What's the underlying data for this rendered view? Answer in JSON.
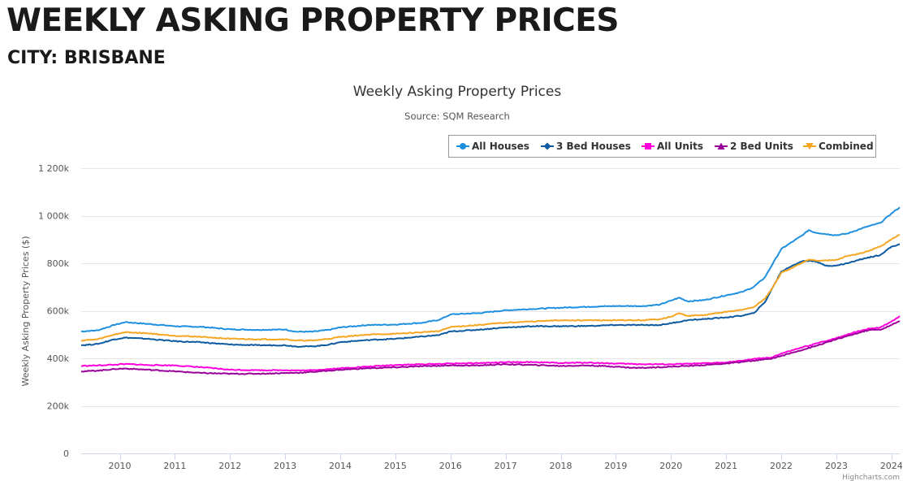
{
  "page": {
    "heading": "WEEKLY ASKING PROPERTY PRICES",
    "subheading": "CITY: BRISBANE"
  },
  "credits": "Highcharts.com",
  "chart_data": {
    "type": "line",
    "title": "Weekly Asking Property Prices",
    "subtitle": "Source: SQM Research",
    "xlabel": "",
    "ylabel": "Weekly Asking Property Prices ($)",
    "xlim": [
      2009.3,
      2024.15
    ],
    "ylim": [
      0,
      1200000
    ],
    "x_ticks": [
      2010,
      2011,
      2012,
      2013,
      2014,
      2015,
      2016,
      2017,
      2018,
      2019,
      2020,
      2021,
      2022,
      2023,
      2024
    ],
    "y_ticks": [
      0,
      200000,
      400000,
      600000,
      800000,
      1000000,
      1200000
    ],
    "y_tick_labels": [
      "0",
      "200k",
      "400k",
      "600k",
      "800k",
      "1 000k",
      "1 200k"
    ],
    "grid": true,
    "legend_position": "top-right",
    "series": [
      {
        "name": "All Houses",
        "color": "#1e90e0",
        "marker": "circle",
        "points": [
          [
            2009.3,
            513000
          ],
          [
            2009.6,
            518000
          ],
          [
            2009.9,
            540000
          ],
          [
            2010.1,
            552000
          ],
          [
            2010.5,
            545000
          ],
          [
            2011.0,
            535000
          ],
          [
            2011.5,
            532000
          ],
          [
            2012.0,
            522000
          ],
          [
            2012.5,
            520000
          ],
          [
            2013.0,
            521000
          ],
          [
            2013.2,
            512000
          ],
          [
            2013.5,
            512000
          ],
          [
            2013.8,
            520000
          ],
          [
            2014.0,
            530000
          ],
          [
            2014.5,
            540000
          ],
          [
            2015.0,
            542000
          ],
          [
            2015.5,
            550000
          ],
          [
            2015.8,
            562000
          ],
          [
            2016.0,
            585000
          ],
          [
            2016.5,
            590000
          ],
          [
            2017.0,
            602000
          ],
          [
            2017.5,
            608000
          ],
          [
            2018.0,
            613000
          ],
          [
            2018.5,
            617000
          ],
          [
            2019.0,
            620000
          ],
          [
            2019.5,
            620000
          ],
          [
            2019.8,
            626000
          ],
          [
            2020.0,
            643000
          ],
          [
            2020.15,
            655000
          ],
          [
            2020.3,
            640000
          ],
          [
            2020.6,
            645000
          ],
          [
            2021.0,
            665000
          ],
          [
            2021.3,
            680000
          ],
          [
            2021.5,
            700000
          ],
          [
            2021.7,
            740000
          ],
          [
            2021.85,
            800000
          ],
          [
            2022.0,
            860000
          ],
          [
            2022.2,
            890000
          ],
          [
            2022.4,
            920000
          ],
          [
            2022.5,
            940000
          ],
          [
            2022.6,
            930000
          ],
          [
            2022.9,
            920000
          ],
          [
            2023.0,
            918000
          ],
          [
            2023.2,
            925000
          ],
          [
            2023.5,
            950000
          ],
          [
            2023.8,
            970000
          ],
          [
            2024.0,
            1010000
          ],
          [
            2024.15,
            1035000
          ]
        ]
      },
      {
        "name": "3 Bed Houses",
        "color": "#0d5aa0",
        "marker": "diamond",
        "points": [
          [
            2009.3,
            455000
          ],
          [
            2009.6,
            460000
          ],
          [
            2009.9,
            480000
          ],
          [
            2010.1,
            487000
          ],
          [
            2010.5,
            482000
          ],
          [
            2011.0,
            472000
          ],
          [
            2011.5,
            467000
          ],
          [
            2012.0,
            458000
          ],
          [
            2012.5,
            455000
          ],
          [
            2013.0,
            455000
          ],
          [
            2013.2,
            450000
          ],
          [
            2013.5,
            450000
          ],
          [
            2013.8,
            458000
          ],
          [
            2014.0,
            468000
          ],
          [
            2014.5,
            477000
          ],
          [
            2015.0,
            482000
          ],
          [
            2015.5,
            492000
          ],
          [
            2015.8,
            498000
          ],
          [
            2016.0,
            513000
          ],
          [
            2016.5,
            520000
          ],
          [
            2017.0,
            530000
          ],
          [
            2017.5,
            535000
          ],
          [
            2018.0,
            535000
          ],
          [
            2018.5,
            536000
          ],
          [
            2019.0,
            540000
          ],
          [
            2019.5,
            540000
          ],
          [
            2019.8,
            540000
          ],
          [
            2020.0,
            548000
          ],
          [
            2020.3,
            560000
          ],
          [
            2020.6,
            565000
          ],
          [
            2021.0,
            572000
          ],
          [
            2021.3,
            580000
          ],
          [
            2021.5,
            590000
          ],
          [
            2021.7,
            635000
          ],
          [
            2021.85,
            700000
          ],
          [
            2022.0,
            765000
          ],
          [
            2022.2,
            790000
          ],
          [
            2022.4,
            810000
          ],
          [
            2022.6,
            810000
          ],
          [
            2022.8,
            790000
          ],
          [
            2023.0,
            790000
          ],
          [
            2023.2,
            800000
          ],
          [
            2023.5,
            820000
          ],
          [
            2023.8,
            835000
          ],
          [
            2024.0,
            870000
          ],
          [
            2024.15,
            880000
          ]
        ]
      },
      {
        "name": "All Units",
        "color": "#ff00dd",
        "marker": "square",
        "points": [
          [
            2009.3,
            368000
          ],
          [
            2009.6,
            370000
          ],
          [
            2009.9,
            373000
          ],
          [
            2010.1,
            376000
          ],
          [
            2010.5,
            372000
          ],
          [
            2011.0,
            370000
          ],
          [
            2011.5,
            362000
          ],
          [
            2012.0,
            352000
          ],
          [
            2012.5,
            350000
          ],
          [
            2013.0,
            350000
          ],
          [
            2013.3,
            349000
          ],
          [
            2013.5,
            350000
          ],
          [
            2014.0,
            358000
          ],
          [
            2014.5,
            365000
          ],
          [
            2015.0,
            372000
          ],
          [
            2015.5,
            375000
          ],
          [
            2016.0,
            378000
          ],
          [
            2016.5,
            380000
          ],
          [
            2017.0,
            383000
          ],
          [
            2017.5,
            384000
          ],
          [
            2018.0,
            380000
          ],
          [
            2018.5,
            382000
          ],
          [
            2019.0,
            378000
          ],
          [
            2019.5,
            375000
          ],
          [
            2020.0,
            375000
          ],
          [
            2020.5,
            378000
          ],
          [
            2021.0,
            383000
          ],
          [
            2021.3,
            390000
          ],
          [
            2021.5,
            398000
          ],
          [
            2021.8,
            402000
          ],
          [
            2022.0,
            420000
          ],
          [
            2022.3,
            440000
          ],
          [
            2022.6,
            460000
          ],
          [
            2023.0,
            485000
          ],
          [
            2023.3,
            508000
          ],
          [
            2023.6,
            525000
          ],
          [
            2023.8,
            530000
          ],
          [
            2024.0,
            555000
          ],
          [
            2024.15,
            578000
          ]
        ]
      },
      {
        "name": "2 Bed Units",
        "color": "#990099",
        "marker": "triangle",
        "points": [
          [
            2009.3,
            345000
          ],
          [
            2009.6,
            348000
          ],
          [
            2009.9,
            355000
          ],
          [
            2010.1,
            357000
          ],
          [
            2010.5,
            352000
          ],
          [
            2011.0,
            345000
          ],
          [
            2011.5,
            338000
          ],
          [
            2012.0,
            335000
          ],
          [
            2012.5,
            335000
          ],
          [
            2013.0,
            338000
          ],
          [
            2013.3,
            340000
          ],
          [
            2013.5,
            343000
          ],
          [
            2014.0,
            352000
          ],
          [
            2014.5,
            358000
          ],
          [
            2015.0,
            362000
          ],
          [
            2015.5,
            367000
          ],
          [
            2016.0,
            370000
          ],
          [
            2016.5,
            370000
          ],
          [
            2017.0,
            375000
          ],
          [
            2017.5,
            372000
          ],
          [
            2018.0,
            368000
          ],
          [
            2018.5,
            370000
          ],
          [
            2019.0,
            365000
          ],
          [
            2019.3,
            360000
          ],
          [
            2019.5,
            360000
          ],
          [
            2020.0,
            365000
          ],
          [
            2020.5,
            370000
          ],
          [
            2021.0,
            378000
          ],
          [
            2021.3,
            385000
          ],
          [
            2021.5,
            390000
          ],
          [
            2021.8,
            398000
          ],
          [
            2022.0,
            410000
          ],
          [
            2022.3,
            430000
          ],
          [
            2022.6,
            450000
          ],
          [
            2023.0,
            480000
          ],
          [
            2023.3,
            500000
          ],
          [
            2023.6,
            520000
          ],
          [
            2023.8,
            520000
          ],
          [
            2024.0,
            540000
          ],
          [
            2024.15,
            557000
          ]
        ]
      },
      {
        "name": "Combined",
        "color": "#f5a623",
        "marker": "triangle-down",
        "points": [
          [
            2009.3,
            475000
          ],
          [
            2009.6,
            480000
          ],
          [
            2009.9,
            500000
          ],
          [
            2010.1,
            510000
          ],
          [
            2010.5,
            505000
          ],
          [
            2011.0,
            495000
          ],
          [
            2011.5,
            490000
          ],
          [
            2012.0,
            482000
          ],
          [
            2012.5,
            480000
          ],
          [
            2013.0,
            480000
          ],
          [
            2013.2,
            475000
          ],
          [
            2013.5,
            475000
          ],
          [
            2013.8,
            482000
          ],
          [
            2014.0,
            490000
          ],
          [
            2014.5,
            500000
          ],
          [
            2015.0,
            503000
          ],
          [
            2015.5,
            510000
          ],
          [
            2015.8,
            515000
          ],
          [
            2016.0,
            532000
          ],
          [
            2016.5,
            540000
          ],
          [
            2017.0,
            550000
          ],
          [
            2017.5,
            555000
          ],
          [
            2018.0,
            560000
          ],
          [
            2018.5,
            560000
          ],
          [
            2019.0,
            560000
          ],
          [
            2019.5,
            560000
          ],
          [
            2019.8,
            565000
          ],
          [
            2020.0,
            575000
          ],
          [
            2020.15,
            590000
          ],
          [
            2020.3,
            578000
          ],
          [
            2020.6,
            582000
          ],
          [
            2021.0,
            595000
          ],
          [
            2021.3,
            605000
          ],
          [
            2021.5,
            615000
          ],
          [
            2021.7,
            650000
          ],
          [
            2021.85,
            700000
          ],
          [
            2022.0,
            760000
          ],
          [
            2022.2,
            780000
          ],
          [
            2022.4,
            805000
          ],
          [
            2022.5,
            815000
          ],
          [
            2022.7,
            810000
          ],
          [
            2023.0,
            815000
          ],
          [
            2023.2,
            830000
          ],
          [
            2023.5,
            845000
          ],
          [
            2023.8,
            870000
          ],
          [
            2024.0,
            900000
          ],
          [
            2024.15,
            920000
          ]
        ]
      }
    ]
  }
}
